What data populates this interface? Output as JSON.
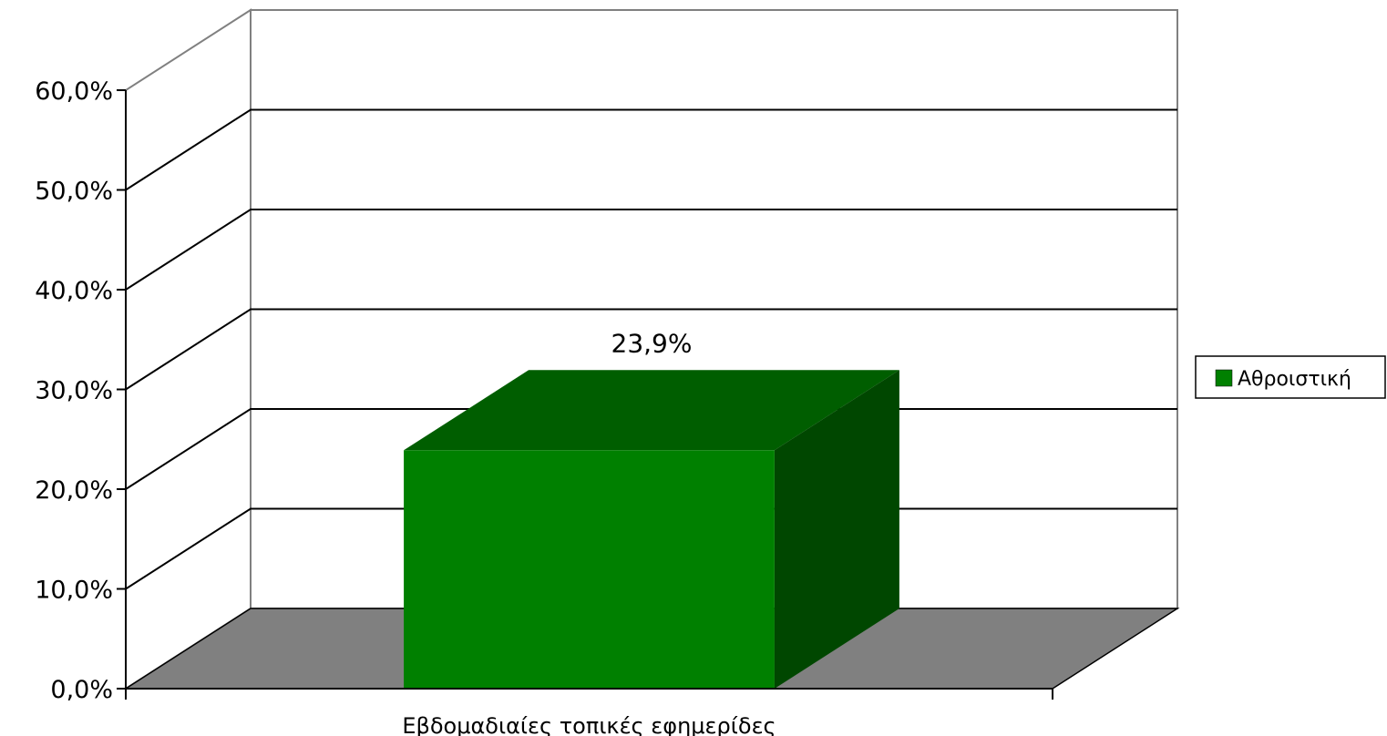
{
  "chart_data": {
    "type": "bar",
    "style": "3d",
    "categories": [
      "Εβδομαδιαίες τοπικές εφημερίδες"
    ],
    "series": [
      {
        "name": "Αθροιστική",
        "values": [
          23.9
        ],
        "color": "#008000"
      }
    ],
    "value_labels": [
      "23,9%"
    ],
    "ylim": [
      0,
      60
    ],
    "yticks": [
      0,
      10,
      20,
      30,
      40,
      50,
      60
    ],
    "ytick_labels": [
      "0,0%",
      "10,0%",
      "20,0%",
      "30,0%",
      "40,0%",
      "50,0%",
      "60,0%"
    ],
    "grid": true,
    "legend_position": "right",
    "colors": {
      "bar_front": "#008000",
      "bar_top": "#005e00",
      "bar_side": "#004700",
      "floor": "#808080",
      "walls": "#ffffff",
      "grid": "#000000"
    }
  }
}
